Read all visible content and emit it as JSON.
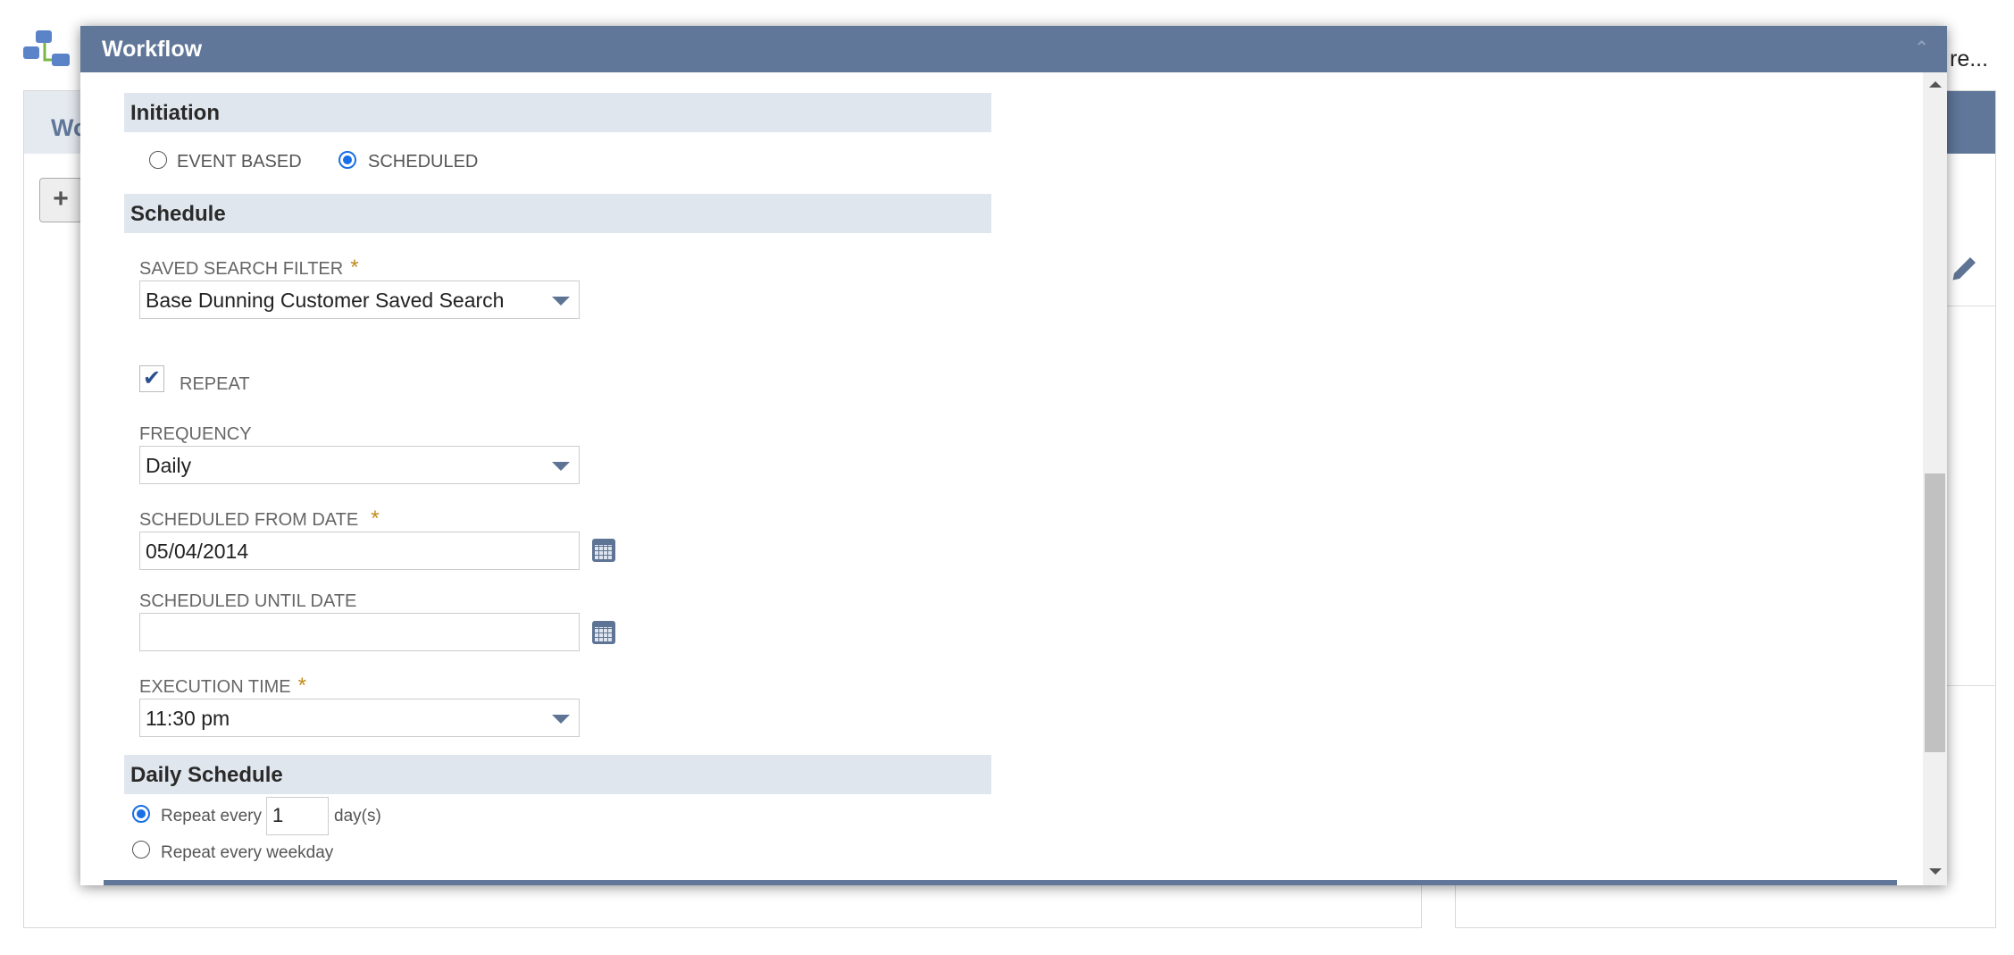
{
  "background": {
    "left_panel_title": "Wo",
    "add_button": "+",
    "more_link": "re..."
  },
  "modal": {
    "title": "Workflow",
    "collapse_icon": "chevron-up",
    "initiation": {
      "title": "Initiation",
      "options": [
        {
          "label": "EVENT BASED",
          "selected": false
        },
        {
          "label": "SCHEDULED",
          "selected": true
        }
      ]
    },
    "schedule": {
      "title": "Schedule",
      "saved_search_label": "SAVED SEARCH FILTER",
      "saved_search_value": "Base Dunning Customer Saved Search",
      "repeat_label": "REPEAT",
      "repeat_checked": true,
      "frequency_label": "FREQUENCY",
      "frequency_value": "Daily",
      "from_date_label": "SCHEDULED FROM DATE",
      "from_date_value": "05/04/2014",
      "until_date_label": "SCHEDULED UNTIL DATE",
      "until_date_value": "",
      "execution_time_label": "EXECUTION TIME",
      "execution_time_value": "11:30 pm",
      "required_mark": "*"
    },
    "daily": {
      "title": "Daily Schedule",
      "repeat_every_label": "Repeat every",
      "repeat_every_value": "1",
      "days_unit": "day(s)",
      "weekday_label": "Repeat every weekday",
      "selected": "repeat_every"
    }
  },
  "colors": {
    "header": "#607799",
    "section": "#e0e6ed",
    "required": "#c08b1a",
    "radio": "#1a6fe6"
  }
}
